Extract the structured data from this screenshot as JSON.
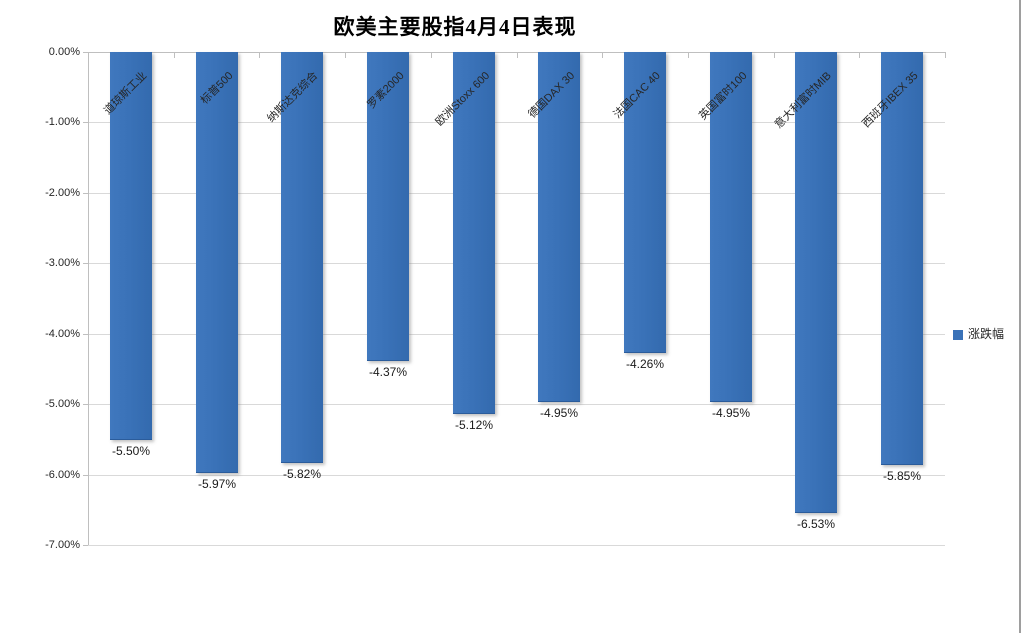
{
  "title": "欧美主要股指4月4日表现",
  "legend": {
    "label": "涨跌幅"
  },
  "colors": {
    "bar": "#3a72b8",
    "bar_edge": "#2b5c9b",
    "gridline": "#d9d9d9",
    "axis": "#bfbfbf",
    "chart_border": "#9e9e9e",
    "text": "#262626"
  },
  "chart_data": {
    "type": "bar",
    "title": "欧美主要股指4月4日表现",
    "categories": [
      "道琼斯工业",
      "标普500",
      "纳斯达克综合",
      "罗素2000",
      "欧洲Stoxx 600",
      "德国DAX 30",
      "法国CAC 40",
      "英国富时100",
      "意大利富时MIB",
      "西班牙IBEX 35"
    ],
    "series": [
      {
        "name": "涨跌幅",
        "values": [
          -5.5,
          -5.97,
          -5.82,
          -4.37,
          -5.12,
          -4.95,
          -4.26,
          -4.95,
          -6.53,
          -5.85
        ]
      }
    ],
    "data_labels": [
      "-5.50%",
      "-5.97%",
      "-5.82%",
      "-4.37%",
      "-5.12%",
      "-4.95%",
      "-4.26%",
      "-4.95%",
      "-6.53%",
      "-5.85%"
    ],
    "xlabel": "",
    "ylabel": "",
    "ylim": [
      -7,
      0
    ],
    "yticks": [
      {
        "label": "0.00%",
        "value": 0
      },
      {
        "label": "-1.00%",
        "value": -1
      },
      {
        "label": "-2.00%",
        "value": -2
      },
      {
        "label": "-3.00%",
        "value": -3
      },
      {
        "label": "-4.00%",
        "value": -4
      },
      {
        "label": "-5.00%",
        "value": -5
      },
      {
        "label": "-6.00%",
        "value": -6
      },
      {
        "label": "-7.00%",
        "value": -7
      }
    ],
    "grid": true,
    "legend_position": "right"
  }
}
